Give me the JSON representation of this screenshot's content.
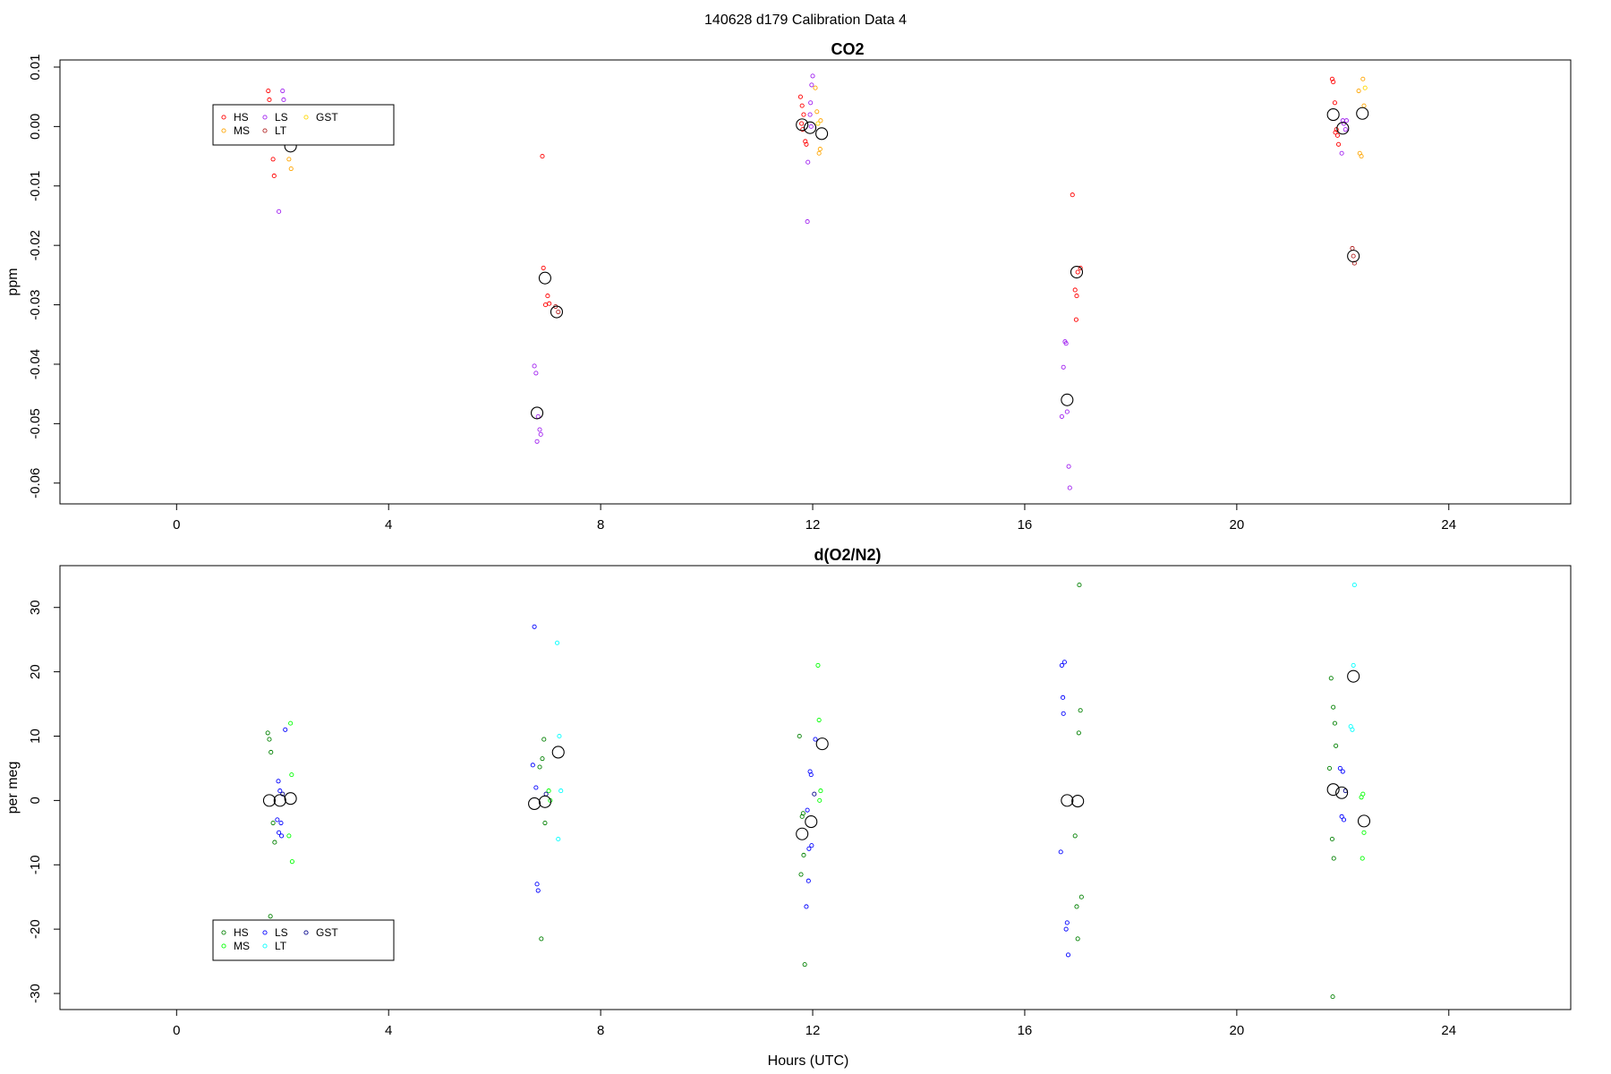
{
  "figure": {
    "suptitle": "140628   d179   Calibration Data 4",
    "xlabel": "Hours (UTC)"
  },
  "chart_data": [
    {
      "type": "scatter",
      "title": "CO2",
      "xlabel": "",
      "ylabel": "ppm",
      "xlim": [
        -2.2,
        26.3
      ],
      "ylim": [
        -0.0635,
        0.0112
      ],
      "xticks": [
        0,
        4,
        8,
        12,
        16,
        20,
        24
      ],
      "yticks": [
        -0.06,
        -0.05,
        -0.04,
        -0.03,
        -0.02,
        -0.01,
        0.0,
        0.01
      ],
      "ytick_labels": [
        "-0.06",
        "-0.05",
        "-0.04",
        "-0.03",
        "-0.02",
        "-0.01",
        "0.00",
        "0.01"
      ],
      "legend": {
        "placement": "top-left",
        "entries": [
          {
            "label": "HS",
            "color": "#ff0000"
          },
          {
            "label": "MS",
            "color": "#ffa500"
          },
          {
            "label": "LS",
            "color": "#a020f0"
          },
          {
            "label": "LT",
            "color": "#b22222"
          },
          {
            "label": "GST",
            "color": "#ffd700"
          }
        ]
      },
      "series": [
        {
          "name": "HS",
          "color": "#ff0000",
          "points": [
            [
              1.73,
              0.006
            ],
            [
              1.75,
              0.0045
            ],
            [
              1.82,
              -0.0055
            ],
            [
              1.84,
              -0.0083
            ],
            [
              6.9,
              -0.005
            ],
            [
              6.92,
              -0.0238
            ],
            [
              7.0,
              -0.0285
            ],
            [
              7.03,
              -0.0298
            ],
            [
              6.96,
              -0.03
            ],
            [
              11.77,
              0.005
            ],
            [
              11.8,
              0.0035
            ],
            [
              11.83,
              0.002
            ],
            [
              11.81,
              -0.0005
            ],
            [
              11.86,
              -0.0025
            ],
            [
              11.88,
              -0.003
            ],
            [
              11.79,
              0.0005
            ],
            [
              16.9,
              -0.0115
            ],
            [
              16.95,
              -0.0275
            ],
            [
              16.98,
              -0.0285
            ],
            [
              16.97,
              -0.0325
            ],
            [
              17.0,
              -0.0245
            ],
            [
              17.05,
              -0.0238
            ],
            [
              21.8,
              0.008
            ],
            [
              21.82,
              0.0075
            ],
            [
              21.85,
              0.004
            ],
            [
              21.88,
              -0.0005
            ],
            [
              21.9,
              -0.0015
            ],
            [
              21.92,
              -0.003
            ],
            [
              21.86,
              -0.001
            ]
          ]
        },
        {
          "name": "MS",
          "color": "#ffa500",
          "points": [
            [
              2.12,
              -0.0055
            ],
            [
              2.16,
              -0.0071
            ],
            [
              2.1,
              -0.0025
            ],
            [
              12.05,
              0.0065
            ],
            [
              12.08,
              0.0025
            ],
            [
              12.15,
              0.001
            ],
            [
              12.12,
              -0.0045
            ],
            [
              12.14,
              -0.0038
            ],
            [
              22.3,
              0.006
            ],
            [
              22.35,
              -0.005
            ],
            [
              22.32,
              -0.0045
            ],
            [
              22.38,
              0.008
            ],
            [
              22.4,
              0.0035
            ]
          ]
        },
        {
          "name": "LS",
          "color": "#a020f0",
          "points": [
            [
              1.93,
              -0.0143
            ],
            [
              2.0,
              0.006
            ],
            [
              2.02,
              0.0045
            ],
            [
              6.75,
              -0.0403
            ],
            [
              6.78,
              -0.0415
            ],
            [
              6.82,
              -0.0488
            ],
            [
              6.85,
              -0.051
            ],
            [
              6.87,
              -0.0518
            ],
            [
              6.8,
              -0.053
            ],
            [
              11.9,
              -0.016
            ],
            [
              11.91,
              -0.006
            ],
            [
              12.0,
              0.0085
            ],
            [
              11.98,
              0.007
            ],
            [
              11.96,
              0.004
            ],
            [
              11.95,
              0.002
            ],
            [
              11.97,
              0.0
            ],
            [
              16.7,
              -0.0488
            ],
            [
              16.73,
              -0.0405
            ],
            [
              16.76,
              -0.0362
            ],
            [
              16.8,
              -0.048
            ],
            [
              16.83,
              -0.0572
            ],
            [
              16.85,
              -0.0608
            ],
            [
              16.78,
              -0.0365
            ],
            [
              22.0,
              0.001
            ],
            [
              22.02,
              0.0005
            ],
            [
              22.05,
              -0.0005
            ],
            [
              21.98,
              -0.0045
            ],
            [
              22.07,
              0.001
            ]
          ]
        },
        {
          "name": "LT",
          "color": "#b22222",
          "points": [
            [
              7.15,
              -0.0303
            ],
            [
              7.2,
              -0.0312
            ],
            [
              22.18,
              -0.0205
            ],
            [
              22.22,
              -0.023
            ],
            [
              22.2,
              -0.0218
            ]
          ]
        },
        {
          "name": "GST",
          "color": "#ffd700",
          "points": [
            [
              2.05,
              -0.0015
            ],
            [
              12.1,
              0.0005
            ],
            [
              22.42,
              0.0065
            ]
          ]
        },
        {
          "name": "",
          "color": "#000000",
          "marker": "mean",
          "points": [
            [
              2.15,
              -0.0033
            ],
            [
              6.8,
              -0.0482
            ],
            [
              6.95,
              -0.0255
            ],
            [
              7.17,
              -0.0312
            ],
            [
              11.8,
              0.0003
            ],
            [
              11.95,
              -0.0002
            ],
            [
              12.17,
              -0.0012
            ],
            [
              16.8,
              -0.046
            ],
            [
              16.98,
              -0.0245
            ],
            [
              21.82,
              0.002
            ],
            [
              22.0,
              -0.0003
            ],
            [
              22.2,
              -0.0218
            ],
            [
              22.37,
              0.0022
            ]
          ]
        }
      ]
    },
    {
      "type": "scatter",
      "title": "d(O2/N2)",
      "xlabel": "Hours (UTC)",
      "ylabel": "per meg",
      "xlim": [
        -2.2,
        26.3
      ],
      "ylim": [
        -32.5,
        36.5
      ],
      "xticks": [
        0,
        4,
        8,
        12,
        16,
        20,
        24
      ],
      "yticks": [
        -30,
        -20,
        -10,
        0,
        10,
        20,
        30
      ],
      "ytick_labels": [
        "-30",
        "-20",
        "-10",
        "0",
        "10",
        "20",
        "30"
      ],
      "legend": {
        "placement": "bottom-left",
        "entries": [
          {
            "label": "HS",
            "color": "#008000"
          },
          {
            "label": "MS",
            "color": "#00ff00"
          },
          {
            "label": "LS",
            "color": "#0000ff"
          },
          {
            "label": "LT",
            "color": "#00ffff"
          },
          {
            "label": "GST",
            "color": "#00008b"
          }
        ]
      },
      "series": [
        {
          "name": "HS",
          "color": "#008000",
          "points": [
            [
              1.72,
              10.5
            ],
            [
              1.75,
              9.5
            ],
            [
              1.78,
              7.5
            ],
            [
              1.77,
              -18
            ],
            [
              1.82,
              -3.5
            ],
            [
              1.85,
              -6.5
            ],
            [
              6.85,
              5.2
            ],
            [
              6.9,
              6.5
            ],
            [
              6.93,
              9.5
            ],
            [
              6.88,
              -21.5
            ],
            [
              6.95,
              -3.5
            ],
            [
              11.75,
              10
            ],
            [
              11.82,
              -2
            ],
            [
              11.8,
              -2.5
            ],
            [
              11.83,
              -8.5
            ],
            [
              11.78,
              -11.5
            ],
            [
              11.85,
              -25.5
            ],
            [
              16.95,
              -5.5
            ],
            [
              16.98,
              -16.5
            ],
            [
              17.0,
              -21.5
            ],
            [
              17.02,
              10.5
            ],
            [
              17.05,
              14
            ],
            [
              17.03,
              33.5
            ],
            [
              17.07,
              -15
            ],
            [
              21.78,
              19
            ],
            [
              21.82,
              14.5
            ],
            [
              21.85,
              12
            ],
            [
              21.87,
              8.5
            ],
            [
              21.75,
              5
            ],
            [
              21.8,
              -6
            ],
            [
              21.83,
              -9
            ],
            [
              21.81,
              -30.5
            ]
          ]
        },
        {
          "name": "MS",
          "color": "#00ff00",
          "points": [
            [
              2.15,
              12
            ],
            [
              2.17,
              4
            ],
            [
              2.12,
              -5.5
            ],
            [
              2.18,
              -9.5
            ],
            [
              7.02,
              1.5
            ],
            [
              7.05,
              0
            ],
            [
              12.1,
              21
            ],
            [
              12.12,
              12.5
            ],
            [
              12.15,
              1.5
            ],
            [
              12.13,
              0
            ],
            [
              22.35,
              0.5
            ],
            [
              22.38,
              1
            ],
            [
              22.4,
              -5
            ],
            [
              22.37,
              -9
            ]
          ]
        },
        {
          "name": "LS",
          "color": "#0000ff",
          "points": [
            [
              1.92,
              3
            ],
            [
              1.95,
              1.5
            ],
            [
              1.9,
              -3
            ],
            [
              1.97,
              -3.5
            ],
            [
              1.93,
              -5
            ],
            [
              1.98,
              -5.5
            ],
            [
              2.05,
              11
            ],
            [
              6.72,
              5.5
            ],
            [
              6.78,
              2
            ],
            [
              6.8,
              -13
            ],
            [
              6.82,
              -14
            ],
            [
              6.75,
              27
            ],
            [
              11.9,
              -1.5
            ],
            [
              11.95,
              4.5
            ],
            [
              11.97,
              4
            ],
            [
              11.98,
              -7
            ],
            [
              11.93,
              -7.5
            ],
            [
              11.92,
              -12.5
            ],
            [
              11.88,
              -16.5
            ],
            [
              12.05,
              9.5
            ],
            [
              16.7,
              21
            ],
            [
              16.75,
              21.5
            ],
            [
              16.72,
              16
            ],
            [
              16.73,
              13.5
            ],
            [
              16.68,
              -8
            ],
            [
              16.78,
              -20
            ],
            [
              16.8,
              -19
            ],
            [
              16.82,
              -24
            ],
            [
              21.95,
              5
            ],
            [
              22.0,
              4.5
            ],
            [
              21.98,
              -2.5
            ],
            [
              22.02,
              -3
            ]
          ]
        },
        {
          "name": "LT",
          "color": "#00ffff",
          "points": [
            [
              7.18,
              24.5
            ],
            [
              7.22,
              10
            ],
            [
              7.25,
              1.5
            ],
            [
              7.2,
              -6
            ],
            [
              22.15,
              11.5
            ],
            [
              22.18,
              11
            ],
            [
              22.2,
              21
            ],
            [
              22.22,
              33.5
            ]
          ]
        },
        {
          "name": "GST",
          "color": "#00008b",
          "points": [
            [
              2.0,
              1
            ],
            [
              6.97,
              1
            ],
            [
              12.03,
              1
            ],
            [
              22.05,
              1.5
            ]
          ]
        },
        {
          "name": "",
          "color": "#000000",
          "marker": "mean",
          "points": [
            [
              1.75,
              0
            ],
            [
              1.95,
              0
            ],
            [
              2.15,
              0.3
            ],
            [
              6.75,
              -0.5
            ],
            [
              6.95,
              -0.2
            ],
            [
              7.2,
              7.5
            ],
            [
              11.8,
              -5.2
            ],
            [
              11.97,
              -3.3
            ],
            [
              12.18,
              8.8
            ],
            [
              16.8,
              0
            ],
            [
              17.0,
              -0.1
            ],
            [
              21.82,
              1.7
            ],
            [
              21.98,
              1.2
            ],
            [
              22.2,
              19.3
            ],
            [
              22.4,
              -3.2
            ]
          ]
        }
      ]
    }
  ]
}
